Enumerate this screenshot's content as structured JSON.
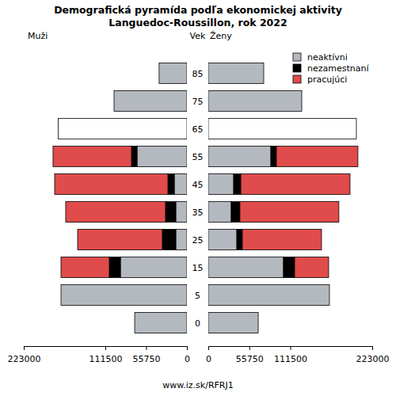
{
  "chart_data": {
    "type": "pyramid",
    "orientation": "horizontal",
    "stacked": true,
    "title": "Demografická pyramída podľa ekonomickej aktivity",
    "subtitle": "Languedoc-Roussillon, rok 2022",
    "axis_label": "Vek",
    "source": "www.iz.sk/RFRJ1",
    "legend": "top-right",
    "categories": [
      "0",
      "5",
      "15",
      "25",
      "35",
      "45",
      "55",
      "65",
      "75",
      "85"
    ],
    "sides": [
      {
        "label": "Muži",
        "xlim": [
          223000,
          0
        ],
        "xticks": [
          223000,
          111500,
          55750,
          0
        ]
      },
      {
        "label": "Ženy",
        "xlim": [
          0,
          223000
        ],
        "xticks": [
          0,
          55750,
          111500,
          223000
        ]
      }
    ],
    "series": [
      {
        "name": "neaktívni",
        "color": "#b4b9c0",
        "values": [
          [
            71400,
            172100,
            90900,
            15200,
            15200,
            17300,
            68200,
            null,
            99600,
            38000
          ],
          [
            67900,
            164800,
            102300,
            38800,
            31200,
            34500,
            85100,
            null,
            127100,
            75400
          ]
        ]
      },
      {
        "name": "nezamestnaní",
        "color": "#000000",
        "values": [
          [
            null,
            null,
            15200,
            18400,
            14100,
            8700,
            7600,
            null,
            null,
            null
          ],
          [
            null,
            null,
            15100,
            7500,
            11800,
            9700,
            7500,
            null,
            null,
            null
          ]
        ]
      },
      {
        "name": "pracujúci",
        "color": "#e04b4b",
        "values": [
          [
            null,
            null,
            66000,
            115800,
            136400,
            154800,
            107200,
            null,
            null,
            null
          ],
          [
            null,
            null,
            46300,
            107700,
            134600,
            148600,
            110900,
            null,
            null,
            null
          ]
        ]
      },
      {
        "name": null,
        "color": "#ffffff",
        "values": [
          [
            null,
            null,
            null,
            null,
            null,
            null,
            null,
            176000,
            null,
            null
          ],
          [
            null,
            null,
            null,
            null,
            null,
            null,
            null,
            201400,
            null,
            null
          ]
        ]
      }
    ]
  }
}
